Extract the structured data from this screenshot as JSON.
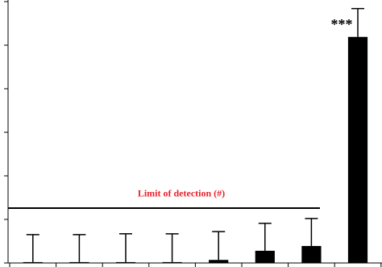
{
  "chart_data": {
    "type": "bar",
    "categories": [
      null,
      null,
      null,
      null,
      null,
      null,
      null,
      null
    ],
    "values": [
      0.02,
      0.02,
      0.02,
      0.02,
      0.07,
      0.28,
      0.39,
      5.19
    ],
    "errors": [
      0.63,
      0.63,
      0.65,
      0.65,
      0.65,
      0.63,
      0.63,
      0.65
    ],
    "significance": [
      null,
      null,
      null,
      null,
      null,
      null,
      null,
      "***"
    ],
    "color": "#000000",
    "ylim": [
      0,
      6
    ],
    "yticks": [
      0,
      1,
      2,
      3,
      4,
      5,
      6
    ],
    "reference_line": {
      "value": 1.26,
      "label": "Limit of detection (#)",
      "color": "#e8212b"
    }
  }
}
